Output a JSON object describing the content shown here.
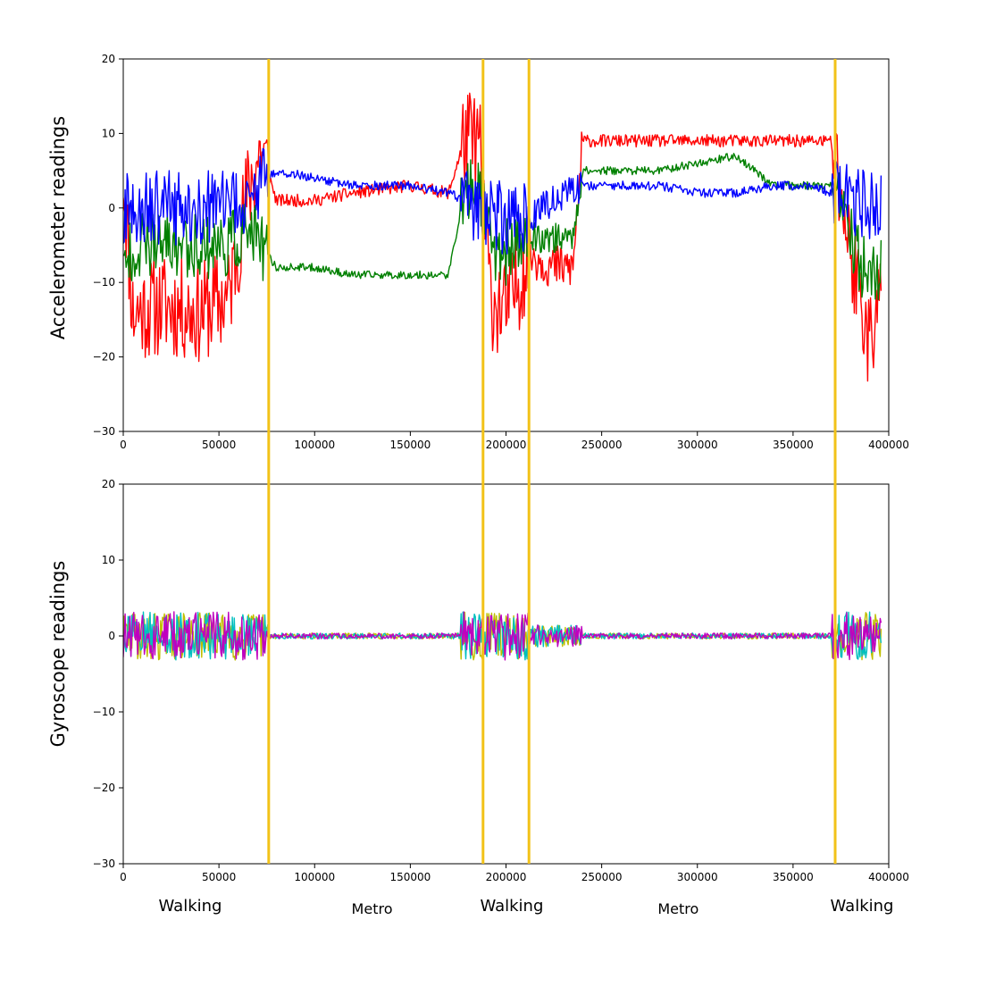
{
  "chart_data": [
    {
      "type": "line",
      "ylabel": "Accelerometer readings",
      "xlim": [
        0,
        400000
      ],
      "ylim": [
        -30,
        20
      ],
      "xticks": [
        0,
        50000,
        100000,
        150000,
        200000,
        250000,
        300000,
        350000,
        400000
      ],
      "xtick_labels": [
        "0",
        "50000",
        "100000",
        "150000",
        "200000",
        "250000",
        "300000",
        "350000",
        "400000"
      ],
      "yticks": [
        -30,
        -20,
        -10,
        0,
        10,
        20
      ],
      "ytick_labels": [
        "−30",
        "−20",
        "−10",
        "0",
        "10",
        "20"
      ],
      "series_colors": [
        "#ff0000",
        "#008000",
        "#0000ff"
      ],
      "series": [
        {
          "color": "#ff0000",
          "x": [
            0,
            5000,
            20000,
            40000,
            55000,
            65000,
            72000,
            80000,
            100000,
            120000,
            150000,
            170000,
            178000,
            186000,
            192000,
            200000,
            212000,
            225000,
            235000,
            240000,
            260000,
            280000,
            300000,
            320000,
            340000,
            360000,
            370000,
            380000,
            390000,
            396000
          ],
          "y": [
            5,
            -14,
            -13,
            -14,
            -12,
            2,
            8,
            1,
            1,
            2,
            3,
            2,
            9,
            9,
            -12,
            -14,
            -6,
            -8,
            -8,
            9,
            9,
            9,
            9,
            9,
            9,
            9,
            9,
            -6,
            -18,
            -12
          ]
        },
        {
          "color": "#008000",
          "x": [
            0,
            5000,
            20000,
            40000,
            55000,
            65000,
            72000,
            80000,
            100000,
            120000,
            150000,
            170000,
            178000,
            186000,
            192000,
            200000,
            212000,
            225000,
            235000,
            240000,
            260000,
            280000,
            300000,
            320000,
            340000,
            360000,
            370000,
            380000,
            390000,
            396000
          ],
          "y": [
            -8,
            -5,
            -5,
            -5,
            -5,
            -3,
            -5,
            -8,
            -8,
            -9,
            -9,
            -9,
            2,
            3,
            -5,
            -6,
            -4,
            -4,
            -4,
            5,
            5,
            5,
            6,
            7,
            3,
            3,
            3,
            -4,
            -10,
            -8
          ]
        },
        {
          "color": "#0000ff",
          "x": [
            0,
            5000,
            20000,
            40000,
            55000,
            65000,
            72000,
            80000,
            100000,
            120000,
            150000,
            170000,
            178000,
            186000,
            192000,
            200000,
            212000,
            225000,
            235000,
            240000,
            260000,
            280000,
            300000,
            320000,
            340000,
            360000,
            370000,
            380000,
            390000,
            396000
          ],
          "y": [
            0,
            0,
            0,
            0,
            0,
            1,
            3,
            5,
            4,
            3,
            3,
            2,
            1,
            0,
            0,
            -2,
            -1,
            1,
            2,
            3,
            3,
            3,
            2,
            2,
            3,
            3,
            2,
            1,
            0,
            0
          ]
        }
      ]
    },
    {
      "type": "line",
      "ylabel": "Gyroscope readings",
      "xlim": [
        0,
        400000
      ],
      "ylim": [
        -30,
        20
      ],
      "xticks": [
        0,
        50000,
        100000,
        150000,
        200000,
        250000,
        300000,
        350000,
        400000
      ],
      "xtick_labels": [
        "0",
        "50000",
        "100000",
        "150000",
        "200000",
        "250000",
        "300000",
        "350000",
        "400000"
      ],
      "yticks": [
        -30,
        -20,
        -10,
        0,
        10,
        20
      ],
      "ytick_labels": [
        "−30",
        "−20",
        "−10",
        "0",
        "10",
        "20"
      ],
      "series_colors": [
        "#bfbf00",
        "#00bfbf",
        "#bf00bf"
      ],
      "series": [
        {
          "color": "#bfbf00",
          "x": [
            0,
            25000,
            50000,
            70000,
            76000,
            120000,
            176000,
            188000,
            200000,
            212000,
            250000,
            300000,
            350000,
            372000,
            385000,
            396000
          ],
          "y": [
            0,
            0,
            0,
            0,
            0,
            0,
            0,
            0,
            0,
            0,
            0,
            0,
            0,
            0,
            0,
            0
          ]
        },
        {
          "color": "#00bfbf",
          "x": [
            0,
            25000,
            50000,
            70000,
            76000,
            120000,
            176000,
            188000,
            200000,
            212000,
            250000,
            300000,
            350000,
            372000,
            385000,
            396000
          ],
          "y": [
            0,
            0,
            0,
            0,
            0,
            0,
            0,
            0,
            0,
            0,
            0,
            0,
            0,
            0,
            0,
            0
          ]
        },
        {
          "color": "#bf00bf",
          "x": [
            0,
            25000,
            50000,
            70000,
            76000,
            120000,
            176000,
            188000,
            200000,
            212000,
            250000,
            300000,
            350000,
            372000,
            385000,
            396000
          ],
          "y": [
            0,
            0,
            0,
            0,
            0,
            0,
            0,
            0,
            0,
            0,
            0,
            0,
            0,
            0,
            0,
            0
          ]
        }
      ]
    }
  ],
  "segment_boundaries": [
    76000,
    188000,
    212000,
    372000
  ],
  "boundary_color": "#f2c218",
  "activities": [
    {
      "label": "Walking",
      "x": 35000
    },
    {
      "label": "Metro",
      "x": 130000
    },
    {
      "label": "Walking",
      "x": 203000
    },
    {
      "label": "Metro",
      "x": 290000
    },
    {
      "label": "Walking",
      "x": 386000
    }
  ]
}
